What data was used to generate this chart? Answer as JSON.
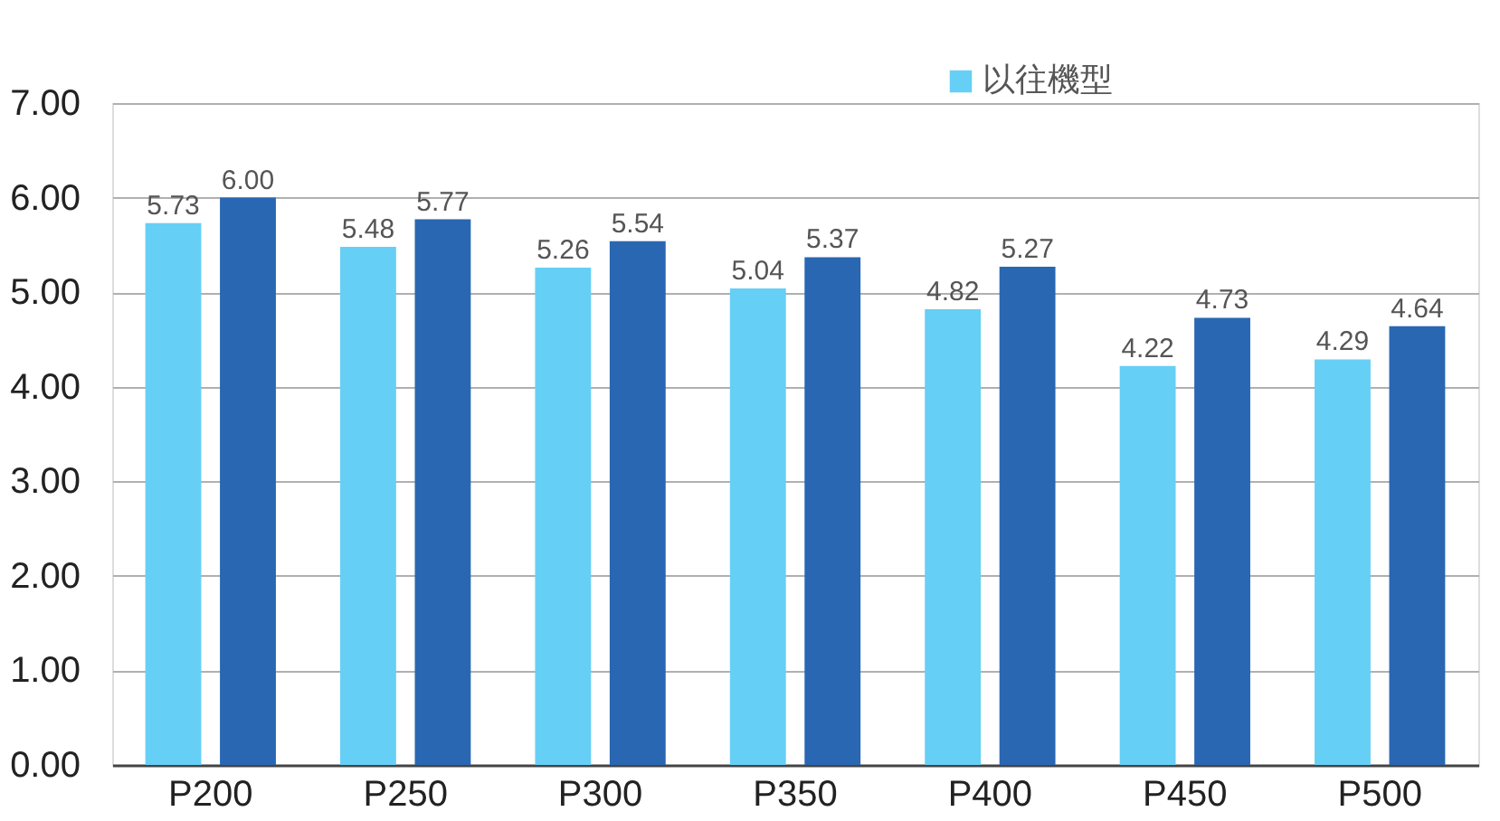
{
  "chart_data": {
    "type": "bar",
    "categories": [
      "P200",
      "P250",
      "P300",
      "P350",
      "P400",
      "P450",
      "P500"
    ],
    "series": [
      {
        "name": "以往機型",
        "color": "#66cff5",
        "values": [
          5.73,
          5.48,
          5.26,
          5.04,
          4.82,
          4.22,
          4.29
        ],
        "value_labels": [
          "5.73",
          "5.48",
          "5.26",
          "5.04",
          "4.82",
          "4.22",
          "4.29"
        ]
      },
      {
        "color": "#2967b3",
        "values": [
          6.0,
          5.77,
          5.54,
          5.37,
          5.27,
          4.73,
          4.64
        ],
        "value_labels": [
          "6.00",
          "5.77",
          "5.54",
          "5.37",
          "5.27",
          "4.73",
          "4.64"
        ]
      }
    ],
    "ylim": [
      0,
      7
    ],
    "yticks": [
      {
        "value": 0,
        "label": "0.00"
      },
      {
        "value": 1,
        "label": "1.00"
      },
      {
        "value": 2,
        "label": "2.00"
      },
      {
        "value": 3,
        "label": "3.00"
      },
      {
        "value": 4,
        "label": "4.00"
      },
      {
        "value": 5,
        "label": "5.00"
      },
      {
        "value": 6,
        "label": "6.00"
      },
      {
        "value": 7,
        "label": "7.00"
      }
    ],
    "grid": "y",
    "legend": "top right"
  }
}
